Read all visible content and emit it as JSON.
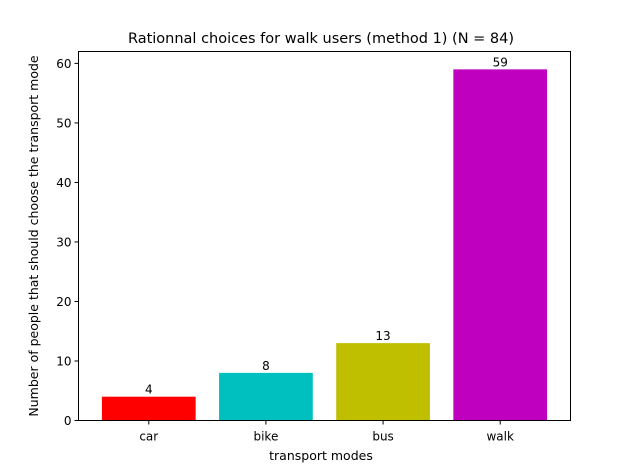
{
  "chart_data": {
    "type": "bar",
    "title": "Rationnal choices for walk users (method 1) (N = 84)",
    "xlabel": "transport modes",
    "ylabel": "Number of people that should choose the transport mode",
    "categories": [
      "car",
      "bike",
      "bus",
      "walk"
    ],
    "values": [
      4,
      8,
      13,
      59
    ],
    "data_labels": [
      "4",
      "8",
      "13",
      "59"
    ],
    "colors": [
      "#ff0000",
      "#00bfbf",
      "#bfbf00",
      "#bf00bf"
    ],
    "ylim": [
      0,
      62
    ],
    "yticks": [
      0,
      10,
      20,
      30,
      40,
      50,
      60
    ],
    "ytick_labels": [
      "0",
      "10",
      "20",
      "30",
      "40",
      "50",
      "60"
    ],
    "grid": false,
    "legend": "none"
  }
}
